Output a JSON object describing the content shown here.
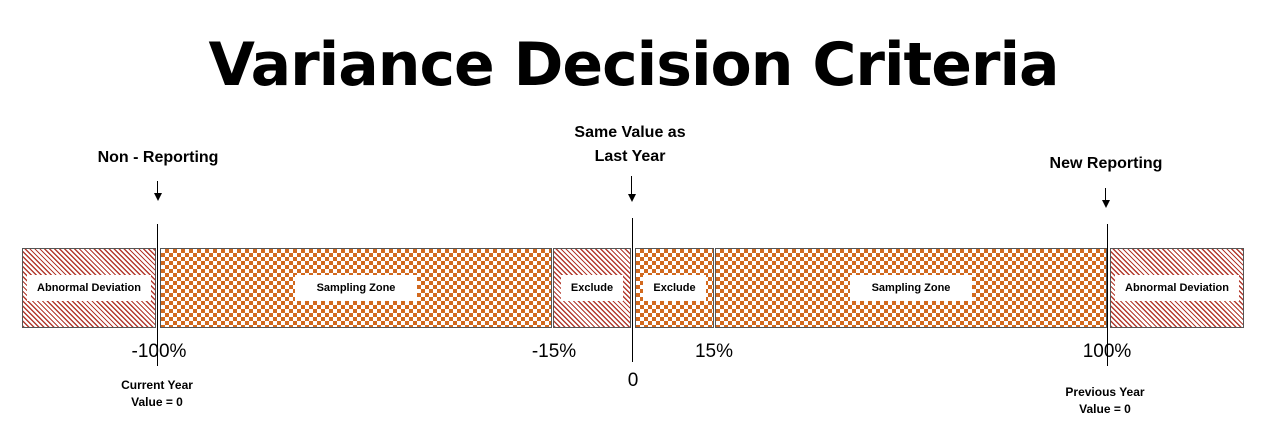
{
  "title": "Variance Decision Criteria",
  "markers": {
    "non_reporting": "Non - Reporting",
    "same_value_line1": "Same Value as",
    "same_value_line2": "Last Year",
    "new_reporting": "New Reporting"
  },
  "zones": [
    {
      "label": "Abnormal Deviation",
      "pattern": "hatch"
    },
    {
      "label": "Sampling Zone",
      "pattern": "checker"
    },
    {
      "label": "Exclude",
      "pattern": "hatch"
    },
    {
      "label": "Exclude",
      "pattern": "checker"
    },
    {
      "label": "Sampling Zone",
      "pattern": "checker"
    },
    {
      "label": "Abnormal Deviation",
      "pattern": "hatch"
    }
  ],
  "ticks": {
    "neg100": "-100%",
    "neg15": "-15%",
    "zero": "0",
    "pos15": "15%",
    "pos100": "100%"
  },
  "notes": {
    "current_year_line1": "Current Year",
    "current_year_line2": "Value = 0",
    "previous_year_line1": "Previous Year",
    "previous_year_line2": "Value = 0"
  },
  "colors": {
    "hatch": "#b33a2e",
    "checker": "#d2691e"
  }
}
